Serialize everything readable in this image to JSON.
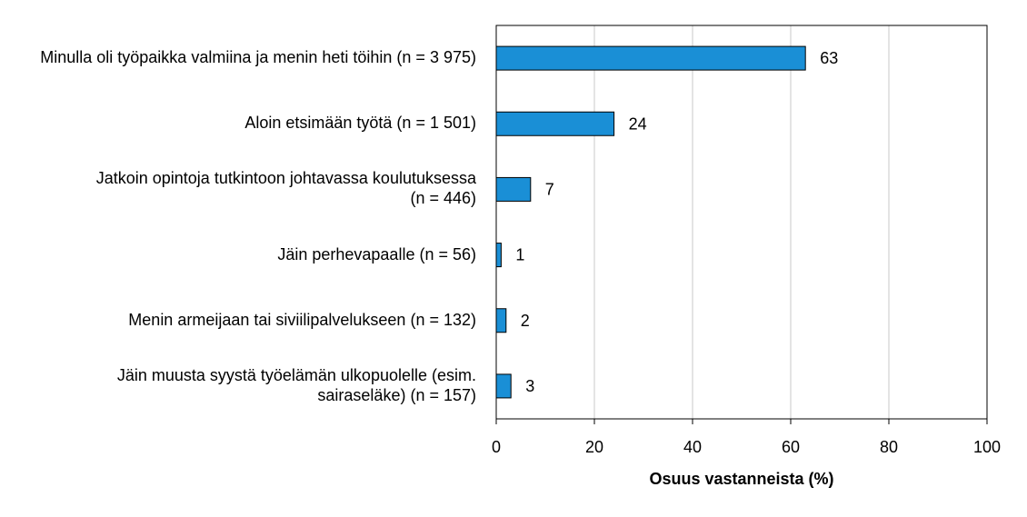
{
  "chart_data": {
    "type": "bar",
    "orientation": "horizontal",
    "categories": [
      "Minulla oli työpaikka valmiina ja menin heti töihin (n = 3 975)",
      "Aloin etsimään työtä (n = 1 501)",
      "Jatkoin opintoja tutkintoon johtavassa koulutuksessa (n = 446)",
      "Jäin perhevapaalle (n = 56)",
      "Menin armeijaan tai siviilipalvelukseen (n = 132)",
      "Jäin muusta syystä työelämän ulkopuolelle (esim. sairaseläke) (n = 157)"
    ],
    "category_lines": [
      [
        "Minulla oli työpaikka valmiina ja menin heti töihin (n = 3 975)"
      ],
      [
        "Aloin etsimään työtä (n = 1 501)"
      ],
      [
        "Jatkoin opintoja tutkintoon johtavassa koulutuksessa",
        "(n = 446)"
      ],
      [
        "Jäin perhevapaalle (n = 56)"
      ],
      [
        "Menin armeijaan tai siviilipalvelukseen (n = 132)"
      ],
      [
        "Jäin muusta syystä työelämän ulkopuolelle (esim.",
        "sairaseläke) (n = 157)"
      ]
    ],
    "values": [
      63,
      24,
      7,
      1,
      2,
      3
    ],
    "data_labels": [
      "63",
      "24",
      "7",
      "1",
      "2",
      "3"
    ],
    "xlabel": "Osuus vastanneista (%)",
    "ylabel": "",
    "xlim": [
      0,
      100
    ],
    "xticks": [
      "0",
      "20",
      "40",
      "60",
      "80",
      "100"
    ],
    "grid": "vertical",
    "bar_color": "#1a8fd6",
    "bar_edge_color": "#000000"
  }
}
